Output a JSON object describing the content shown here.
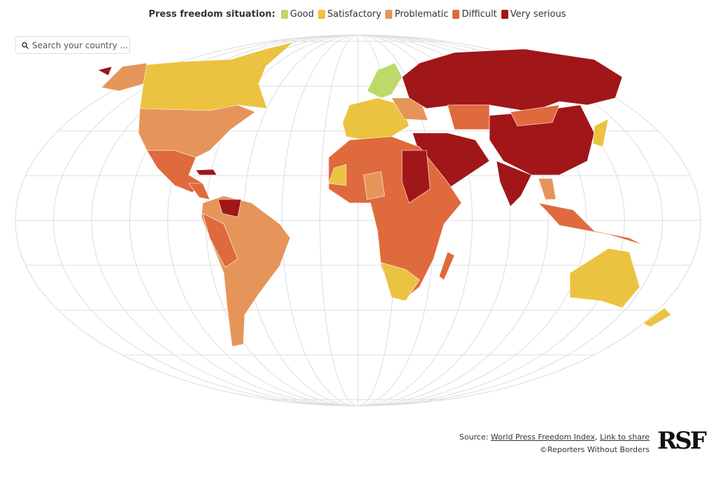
{
  "legend": {
    "title": "Press freedom situation:",
    "items": [
      {
        "label": "Good",
        "color": "#bcd96a"
      },
      {
        "label": "Satisfactory",
        "color": "#ebc340"
      },
      {
        "label": "Problematic",
        "color": "#e6955a"
      },
      {
        "label": "Difficult",
        "color": "#df6a3d"
      },
      {
        "label": "Very serious",
        "color": "#a11618"
      }
    ]
  },
  "search": {
    "placeholder": "Search your country ..."
  },
  "footer": {
    "source_label": "Source:",
    "source_link": "World Press Freedom Index",
    "separator": ",",
    "share_link": "Link to share",
    "copyright": "©Reporters Without Borders",
    "logo": "RSF"
  }
}
